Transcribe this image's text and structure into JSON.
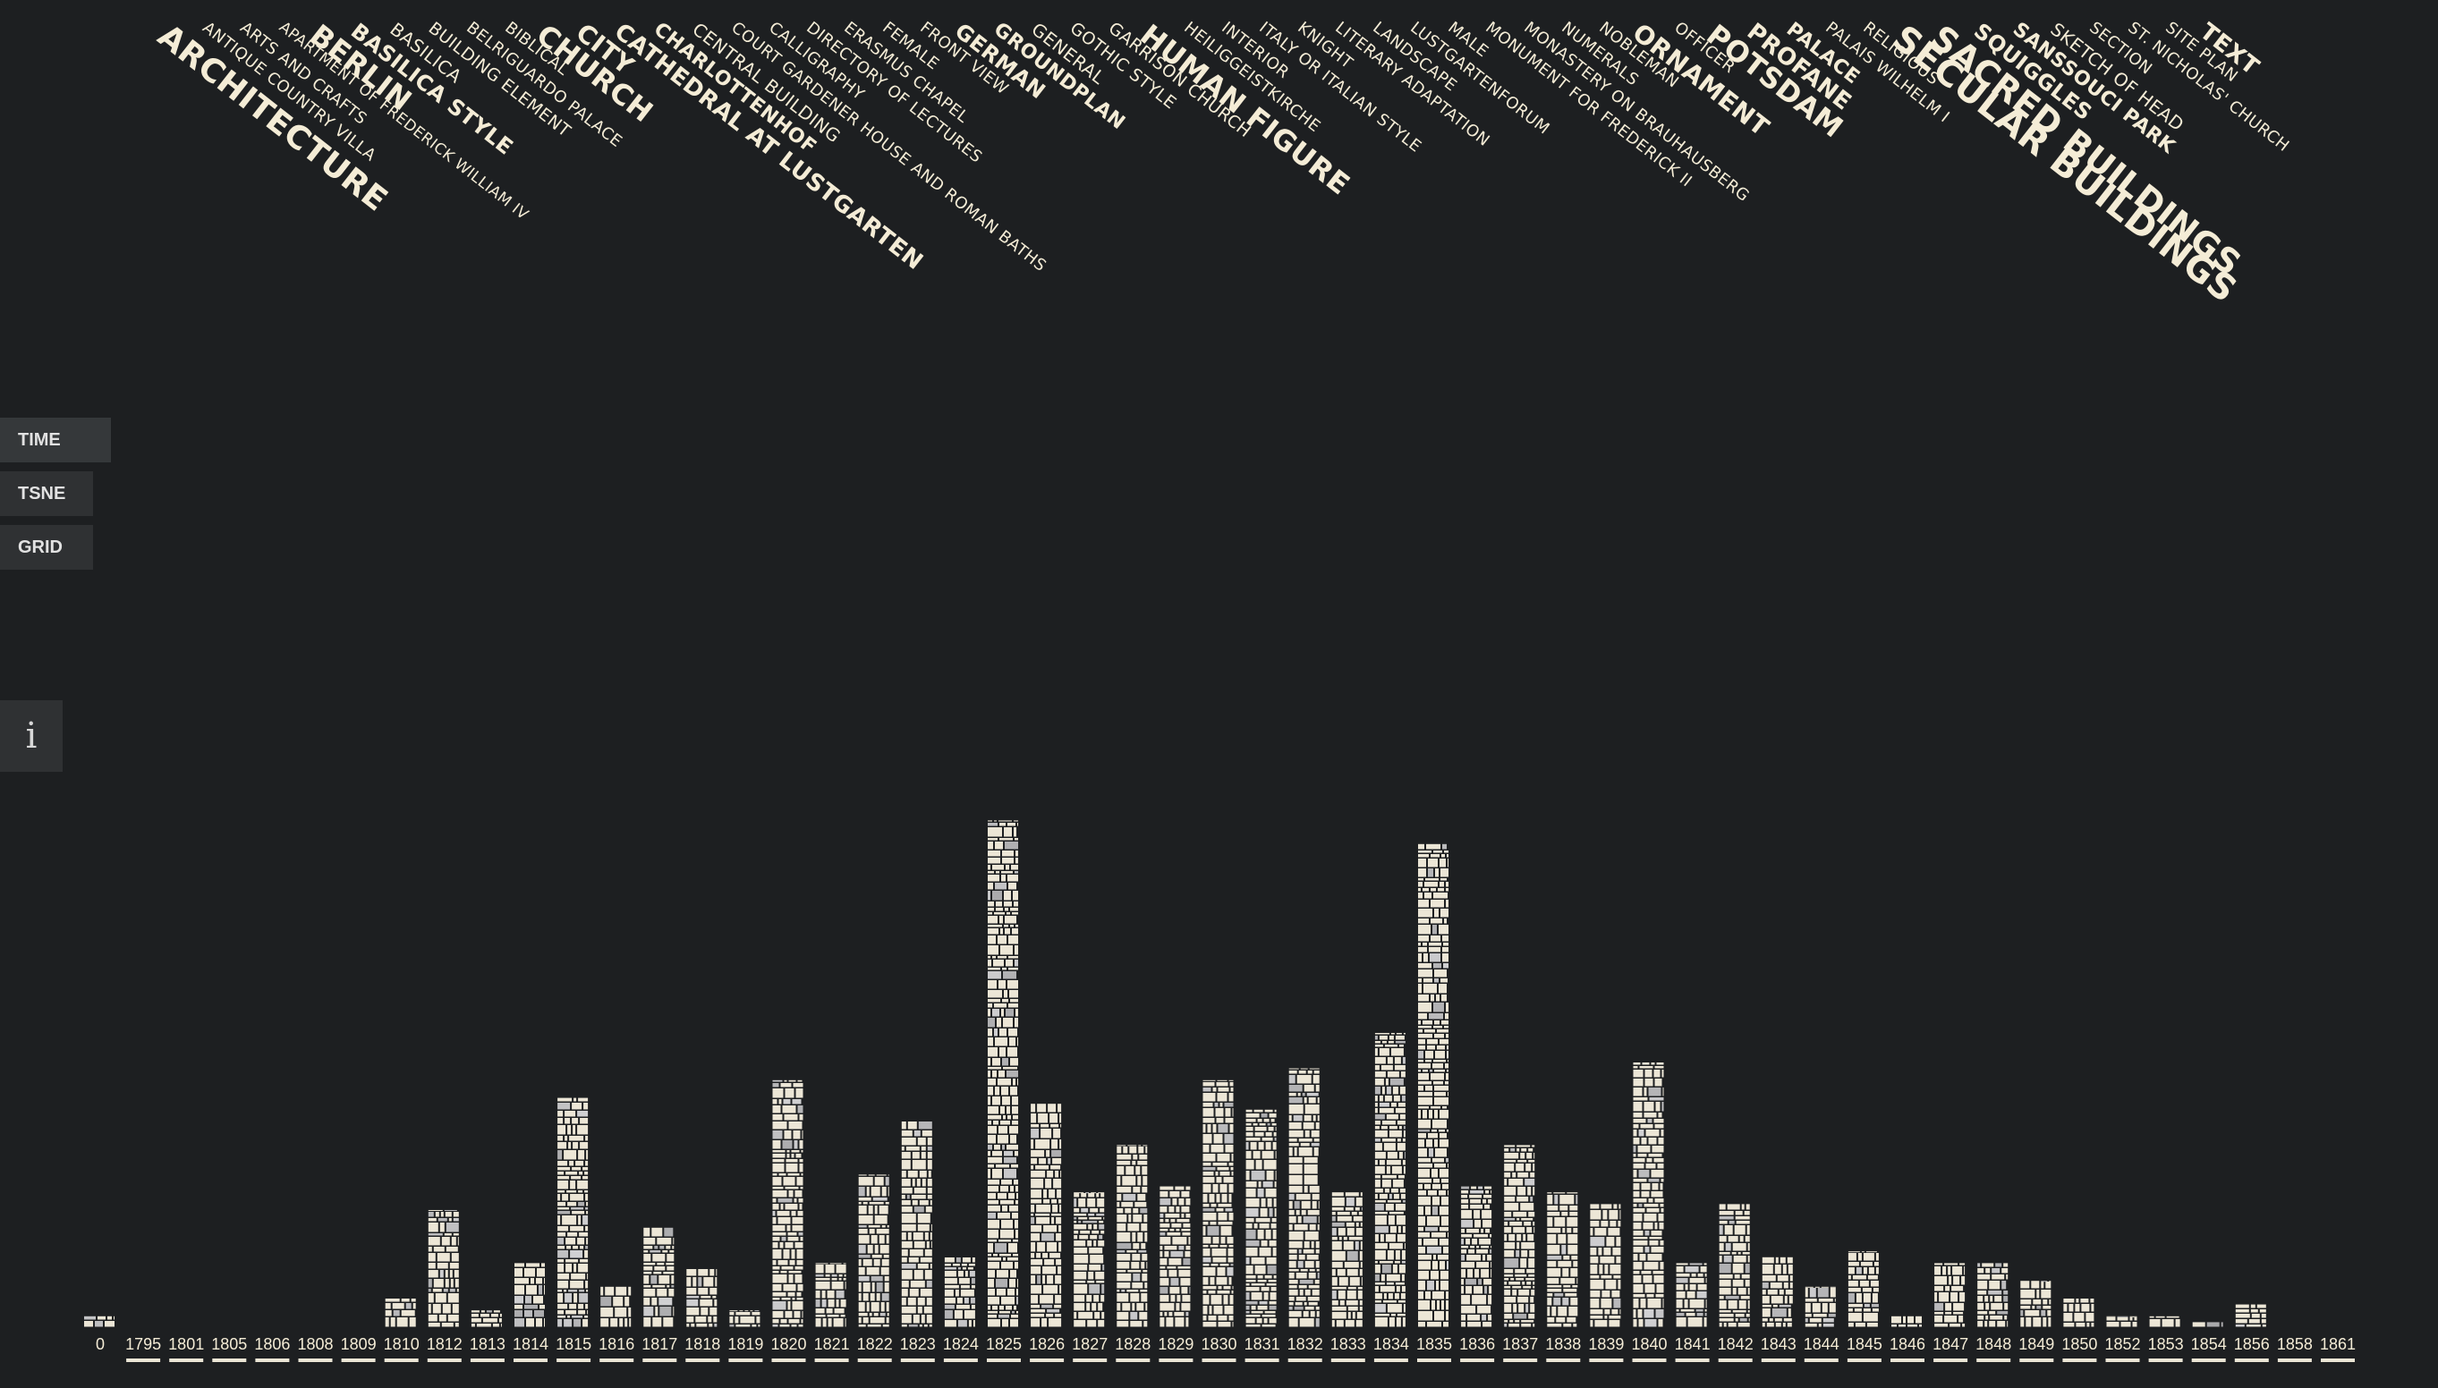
{
  "tags": [
    {
      "label": "Architecture",
      "size": 36
    },
    {
      "label": "Antique Country Villa",
      "size": 18
    },
    {
      "label": "Arts and Crafts",
      "size": 18
    },
    {
      "label": "Apartment of Frederick William IV",
      "size": 17
    },
    {
      "label": "Berlin",
      "size": 32
    },
    {
      "label": "Basilica Style",
      "size": 24
    },
    {
      "label": "Basilica",
      "size": 20
    },
    {
      "label": "Building Element",
      "size": 19
    },
    {
      "label": "Belriguardo Palace",
      "size": 18
    },
    {
      "label": "Biblical",
      "size": 18
    },
    {
      "label": "Church",
      "size": 32
    },
    {
      "label": "City",
      "size": 28
    },
    {
      "label": "Cathedral at Lustgarten",
      "size": 26
    },
    {
      "label": "Charlottenhof",
      "size": 22
    },
    {
      "label": "Central Building",
      "size": 20
    },
    {
      "label": "Court Gardener House and Roman Baths",
      "size": 18
    },
    {
      "label": "Calligraphy",
      "size": 18
    },
    {
      "label": "Directory of Lectures",
      "size": 18
    },
    {
      "label": "Erasmus Chapel",
      "size": 18
    },
    {
      "label": "Female",
      "size": 18
    },
    {
      "label": "Front View",
      "size": 18
    },
    {
      "label": "German",
      "size": 24
    },
    {
      "label": "Groundplan",
      "size": 22
    },
    {
      "label": "General",
      "size": 20
    },
    {
      "label": "Gothic Style",
      "size": 19
    },
    {
      "label": "Garrison Church",
      "size": 19
    },
    {
      "label": "Human Figure",
      "size": 32
    },
    {
      "label": "Heiliggeistkirche",
      "size": 18
    },
    {
      "label": "Interior",
      "size": 18
    },
    {
      "label": "Italy or Italian Style",
      "size": 18
    },
    {
      "label": "Knight",
      "size": 18
    },
    {
      "label": "Literary Adaptation",
      "size": 18
    },
    {
      "label": "Landscape",
      "size": 18
    },
    {
      "label": "Lustgartenforum",
      "size": 18
    },
    {
      "label": "Male",
      "size": 18
    },
    {
      "label": "Monument for Frederick II",
      "size": 18
    },
    {
      "label": "Monastery on Brauhausberg",
      "size": 18
    },
    {
      "label": "Numerals",
      "size": 18
    },
    {
      "label": "Nobleman",
      "size": 18
    },
    {
      "label": "Ornament",
      "size": 28
    },
    {
      "label": "Officer",
      "size": 18
    },
    {
      "label": "Potsdam",
      "size": 32
    },
    {
      "label": "Profane",
      "size": 26
    },
    {
      "label": "Palace",
      "size": 22
    },
    {
      "label": "Palais Wilhelm I",
      "size": 18
    },
    {
      "label": "Religious",
      "size": 18
    },
    {
      "label": "Secular Buildings",
      "size": 40
    },
    {
      "label": "Sacred Buildings",
      "size": 38
    },
    {
      "label": "Squiggles",
      "size": 24
    },
    {
      "label": "Sanssouci Park",
      "size": 22
    },
    {
      "label": "Sketch of Head",
      "size": 20
    },
    {
      "label": "Section",
      "size": 18
    },
    {
      "label": "St. Nicholas' Church",
      "size": 18
    },
    {
      "label": "Site Plan",
      "size": 18
    },
    {
      "label": "Text",
      "size": 26
    }
  ],
  "nav": {
    "time": "TIME",
    "tsne": "TSNE",
    "grid": "GRID"
  },
  "info_label": "i",
  "colors": {
    "background": "#1d1f21",
    "text": "#f4ecd6",
    "tile": "#ece6d6",
    "panel": "#2f3133"
  },
  "chart_data": {
    "type": "bar",
    "title": "",
    "xlabel": "",
    "ylabel": "",
    "categories": [
      "0",
      "1795",
      "1801",
      "1805",
      "1806",
      "1808",
      "1809",
      "1810",
      "1812",
      "1813",
      "1814",
      "1815",
      "1816",
      "1817",
      "1818",
      "1819",
      "1820",
      "1821",
      "1822",
      "1823",
      "1824",
      "1825",
      "1826",
      "1827",
      "1828",
      "1829",
      "1830",
      "1831",
      "1832",
      "1833",
      "1834",
      "1835",
      "1836",
      "1837",
      "1838",
      "1839",
      "1840",
      "1841",
      "1842",
      "1843",
      "1844",
      "1845",
      "1846",
      "1847",
      "1848",
      "1849",
      "1850",
      "1852",
      "1853",
      "1854",
      "1856",
      "1858",
      "1861"
    ],
    "values": [
      2,
      0,
      0,
      0,
      0,
      0,
      0,
      5,
      20,
      3,
      11,
      39,
      7,
      17,
      10,
      3,
      42,
      11,
      26,
      35,
      12,
      86,
      38,
      23,
      31,
      24,
      42,
      37,
      44,
      23,
      50,
      82,
      24,
      31,
      23,
      21,
      45,
      11,
      21,
      12,
      7,
      13,
      2,
      11,
      11,
      8,
      5,
      2,
      2,
      1,
      4,
      0,
      0
    ],
    "ylim": [
      0,
      90
    ]
  }
}
